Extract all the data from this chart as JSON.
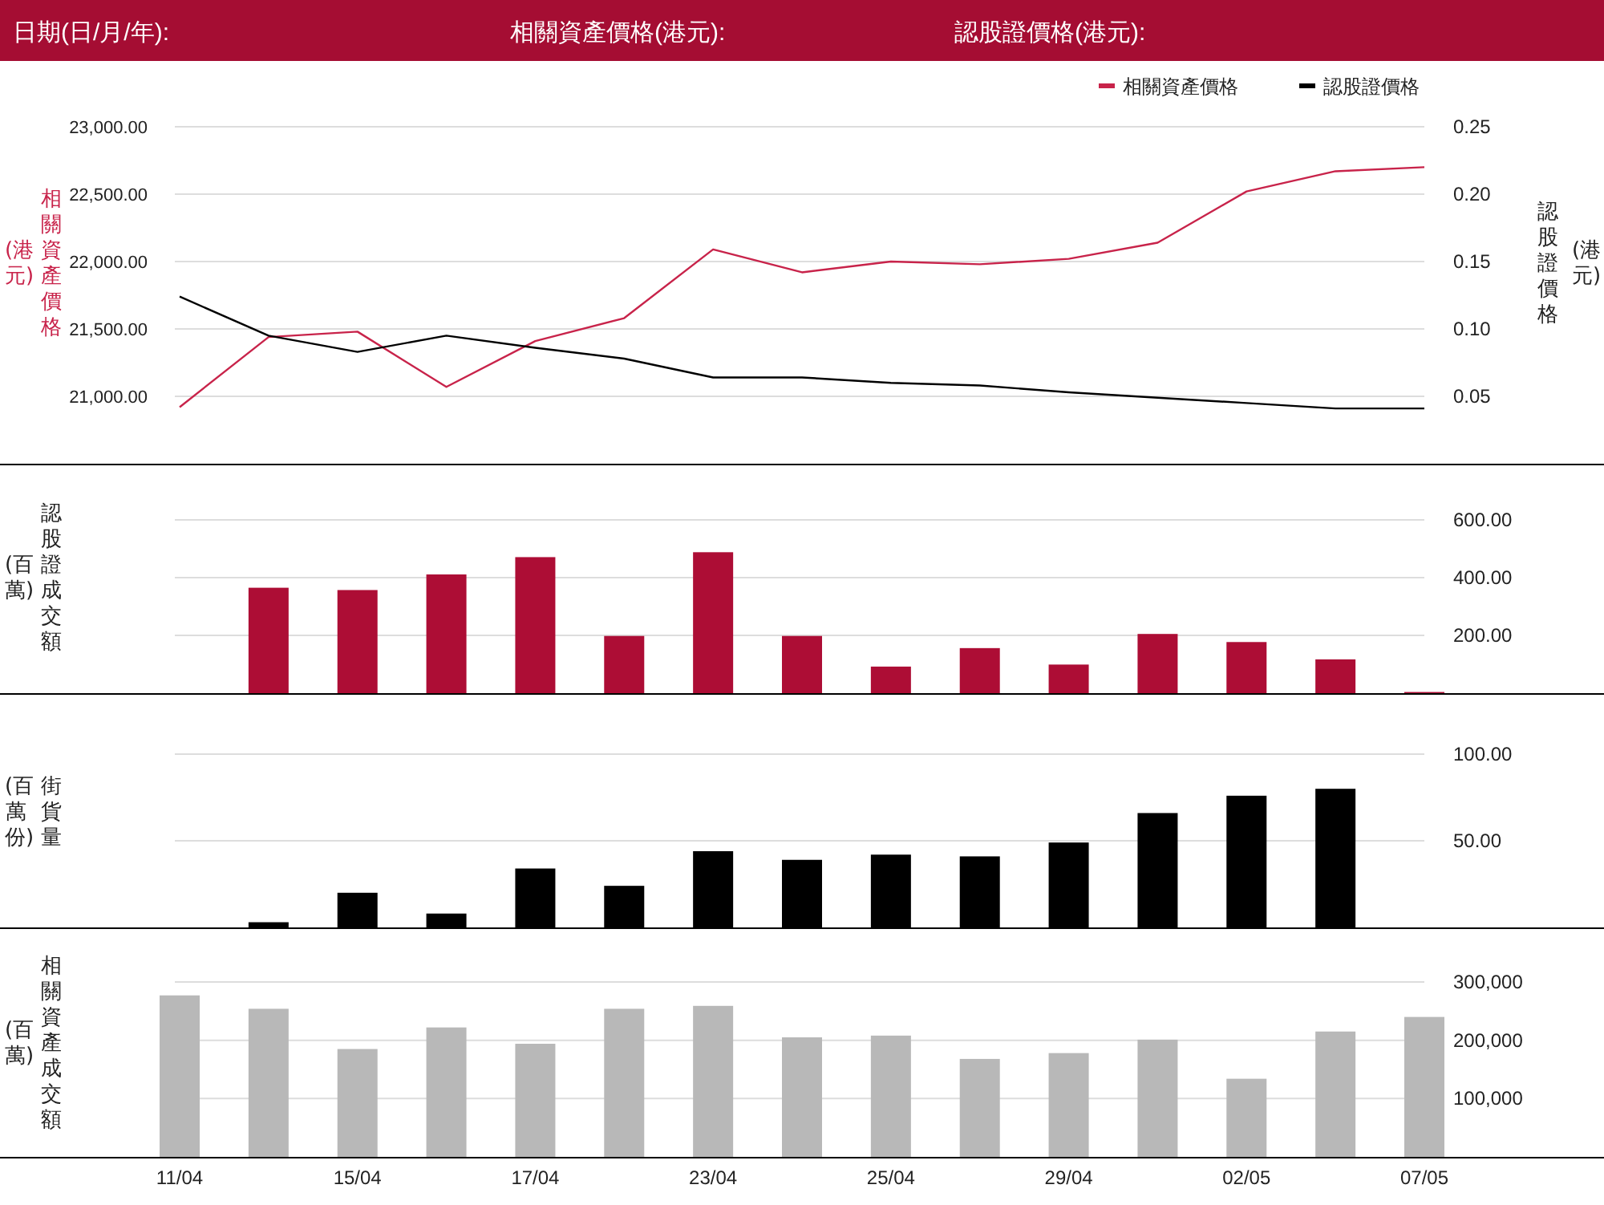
{
  "chart_data": [
    {
      "type": "other",
      "annotations": [
        "日期(日/月/年):",
        "相關資產價格(港元):",
        "認股證價格(港元):"
      ]
    },
    {
      "type": "line",
      "categories": [
        null,
        null,
        null,
        null,
        null,
        null,
        null,
        null,
        null,
        null,
        null,
        null,
        null,
        null,
        null
      ],
      "ylabel": "相關資產價格(港元)",
      "y2label": "認股證價格(港元)",
      "ylim": [
        20500,
        23000
      ],
      "yticks": [
        {
          "value": 21000,
          "label": "21,000.00"
        },
        {
          "value": 21500,
          "label": "21,500.00"
        },
        {
          "value": 22000,
          "label": "22,000.00"
        },
        {
          "value": 22500,
          "label": "22,500.00"
        },
        {
          "value": 23000,
          "label": "23,000.00"
        }
      ],
      "y2lim": [
        0,
        0.25
      ],
      "y2ticks": [
        {
          "value": 0.05,
          "label": "0.05"
        },
        {
          "value": 0.1,
          "label": "0.10"
        },
        {
          "value": 0.15,
          "label": "0.15"
        },
        {
          "value": 0.2,
          "label": "0.20"
        },
        {
          "value": 0.25,
          "label": "0.25"
        }
      ],
      "grid": "y",
      "legend": "top right",
      "tick_labels": "y",
      "marker": "none",
      "series": [
        {
          "name": "相關資產價格",
          "color": "#c8234a",
          "values": [
            20920,
            21440,
            21480,
            21070,
            21410,
            21580,
            22090,
            21920,
            22000,
            21980,
            22020,
            22140,
            22520,
            22670,
            22700
          ]
        },
        {
          "name": "認股證價格",
          "color": "#000000",
          "axis": "y2",
          "values": [
            0.124,
            0.095,
            0.083,
            0.095,
            0.086,
            0.078,
            0.064,
            0.064,
            0.06,
            0.058,
            0.053,
            0.049,
            0.045,
            0.041,
            0.041
          ]
        }
      ]
    },
    {
      "type": "bar",
      "categories": [
        null,
        null,
        null,
        null,
        null,
        null,
        null,
        null,
        null,
        null,
        null,
        null,
        null,
        null,
        null
      ],
      "ylabel": "認股證成交額(百萬)",
      "ylim": [
        0,
        600
      ],
      "yticks": [
        {
          "value": 200,
          "label": "200.00"
        },
        {
          "value": 400,
          "label": "400.00"
        },
        {
          "value": 600,
          "label": "600.00"
        }
      ],
      "grid": "y",
      "tick_labels": "y",
      "color": "#ad0d35",
      "values": [
        null,
        365,
        357,
        411,
        471,
        198,
        488,
        198,
        92,
        156,
        99,
        205,
        177,
        117,
        4
      ]
    },
    {
      "type": "bar",
      "categories": [
        null,
        null,
        null,
        null,
        null,
        null,
        null,
        null,
        null,
        null,
        null,
        null,
        null,
        null,
        null
      ],
      "ylabel": "街貨量(百萬份)",
      "ylim": [
        0,
        100
      ],
      "yticks": [
        {
          "value": 50,
          "label": "50.00"
        },
        {
          "value": 100,
          "label": "100.00"
        }
      ],
      "grid": "y",
      "tick_labels": "y",
      "color": "#000000",
      "values": [
        null,
        3,
        20,
        8,
        34,
        24,
        44,
        39,
        42,
        41,
        49,
        66,
        76,
        80,
        null
      ]
    },
    {
      "type": "bar",
      "categories": [
        "11/04",
        null,
        "15/04",
        null,
        "17/04",
        null,
        "23/04",
        null,
        "25/04",
        null,
        "29/04",
        null,
        "02/05",
        null,
        "07/05"
      ],
      "ylabel": "相關資產成交額(百萬)",
      "ylim": [
        0,
        300000
      ],
      "yticks": [
        {
          "value": 100000,
          "label": "100,000"
        },
        {
          "value": 200000,
          "label": "200,000"
        },
        {
          "value": 300000,
          "label": "300,000"
        }
      ],
      "grid": "y",
      "color": "#b8b8b8",
      "values": [
        277000,
        254000,
        185000,
        222000,
        194000,
        254000,
        259000,
        205000,
        208000,
        168000,
        178000,
        201000,
        134000,
        215000,
        240000
      ]
    }
  ]
}
